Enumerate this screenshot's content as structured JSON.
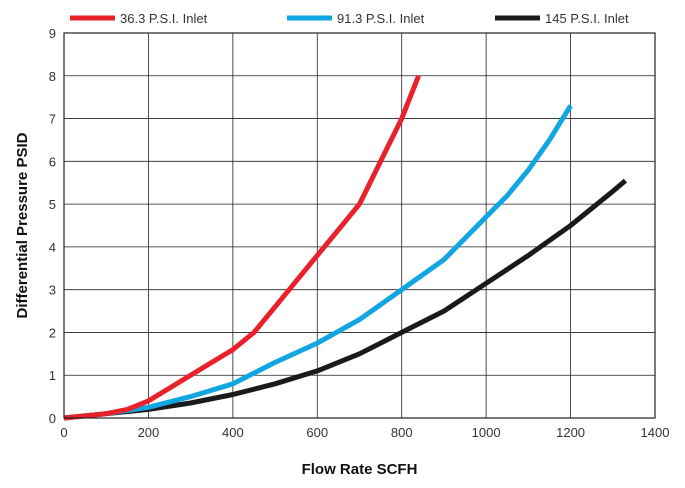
{
  "chart_data": {
    "type": "line",
    "title": "",
    "xlabel": "Flow Rate SCFH",
    "ylabel": "Differential Pressure PSID",
    "xlim": [
      0,
      1400
    ],
    "ylim": [
      0,
      9
    ],
    "xticks": [
      0,
      200,
      400,
      600,
      800,
      1000,
      1200,
      1400
    ],
    "yticks": [
      0,
      1,
      2,
      3,
      4,
      5,
      6,
      7,
      8,
      9
    ],
    "grid": true,
    "legend_position": "top",
    "series": [
      {
        "name": "36.3 P.S.I. Inlet",
        "color": "#e8212b",
        "points": [
          [
            0,
            0
          ],
          [
            50,
            0.05
          ],
          [
            100,
            0.1
          ],
          [
            150,
            0.2
          ],
          [
            200,
            0.4
          ],
          [
            250,
            0.7
          ],
          [
            300,
            1.0
          ],
          [
            350,
            1.3
          ],
          [
            400,
            1.6
          ],
          [
            450,
            2.0
          ],
          [
            500,
            2.6
          ],
          [
            550,
            3.2
          ],
          [
            600,
            3.8
          ],
          [
            650,
            4.4
          ],
          [
            700,
            5.0
          ],
          [
            750,
            6.0
          ],
          [
            800,
            7.0
          ],
          [
            840,
            8.0
          ]
        ]
      },
      {
        "name": "91.3 P.S.I. Inlet",
        "color": "#11a6e2",
        "points": [
          [
            0,
            0
          ],
          [
            100,
            0.1
          ],
          [
            200,
            0.25
          ],
          [
            300,
            0.5
          ],
          [
            400,
            0.8
          ],
          [
            500,
            1.3
          ],
          [
            600,
            1.75
          ],
          [
            700,
            2.3
          ],
          [
            800,
            3.0
          ],
          [
            900,
            3.7
          ],
          [
            1000,
            4.7
          ],
          [
            1050,
            5.2
          ],
          [
            1100,
            5.8
          ],
          [
            1150,
            6.5
          ],
          [
            1200,
            7.3
          ]
        ]
      },
      {
        "name": "145 P.S.I. Inlet",
        "color": "#1a1a1a",
        "points": [
          [
            0,
            0
          ],
          [
            100,
            0.1
          ],
          [
            200,
            0.2
          ],
          [
            300,
            0.35
          ],
          [
            400,
            0.55
          ],
          [
            500,
            0.8
          ],
          [
            600,
            1.1
          ],
          [
            700,
            1.5
          ],
          [
            800,
            2.0
          ],
          [
            900,
            2.5
          ],
          [
            1000,
            3.15
          ],
          [
            1100,
            3.8
          ],
          [
            1200,
            4.5
          ],
          [
            1300,
            5.3
          ],
          [
            1330,
            5.55
          ]
        ]
      }
    ]
  }
}
